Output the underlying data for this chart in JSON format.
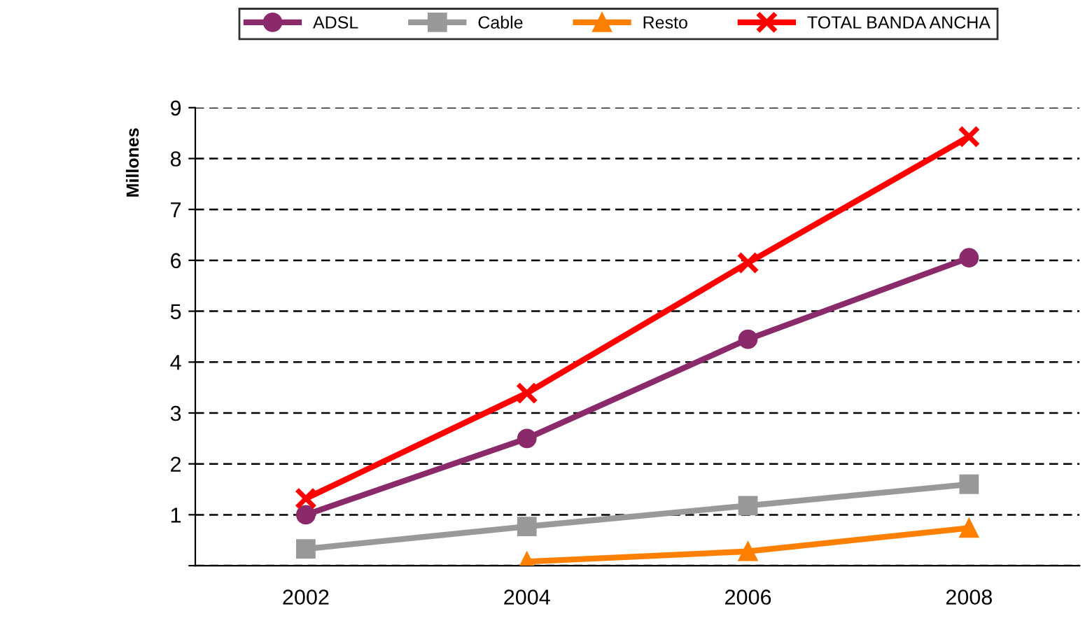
{
  "chart_data": {
    "type": "line",
    "ylabel": "Millones",
    "categories": [
      "2002",
      "2004",
      "2006",
      "2008"
    ],
    "series": [
      {
        "name": "ADSL",
        "color": "#8b2a6b",
        "marker": "circle",
        "values": [
          1.0,
          2.5,
          4.45,
          6.05
        ]
      },
      {
        "name": "Cable",
        "color": "#999999",
        "marker": "square",
        "values": [
          0.33,
          0.77,
          1.18,
          1.6
        ]
      },
      {
        "name": "Resto",
        "color": "#ff7f00",
        "marker": "triangle",
        "values": [
          null,
          0.08,
          0.28,
          0.74
        ]
      },
      {
        "name": "TOTAL BANDA ANCHA",
        "color": "#ff0000",
        "marker": "cross",
        "values": [
          1.32,
          3.39,
          5.95,
          8.43
        ]
      }
    ],
    "ylim": [
      0,
      9
    ],
    "yticks": [
      {
        "value": 0,
        "label": null
      },
      1,
      2,
      3,
      4,
      5,
      6,
      7,
      8,
      9
    ],
    "grid": "y",
    "legend": "top",
    "line_style": "solid"
  }
}
